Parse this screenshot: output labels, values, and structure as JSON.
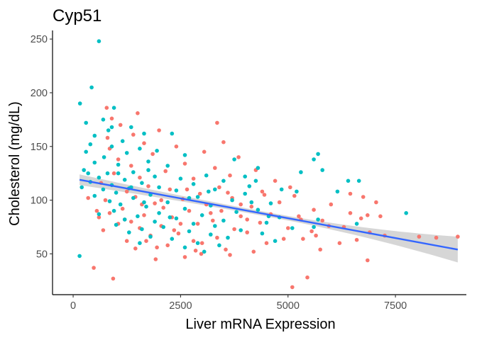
{
  "chart_data": {
    "type": "scatter",
    "title": "Cyp51",
    "xlabel": "Liver mRNA Expression",
    "ylabel": "Cholesterol (mg/dL)",
    "xlim": [
      -480,
      9150
    ],
    "ylim": [
      12,
      258
    ],
    "x_ticks": [
      0,
      2500,
      5000,
      7500
    ],
    "y_ticks": [
      50,
      100,
      150,
      200,
      250
    ],
    "grid": false,
    "legend": "none",
    "series": [
      {
        "color": "#F8766D",
        "points": [
          [
            930,
            27
          ],
          [
            480,
            37
          ],
          [
            1920,
            45
          ],
          [
            2600,
            47
          ],
          [
            3650,
            49
          ],
          [
            2980,
            50
          ],
          [
            4200,
            52
          ],
          [
            3550,
            54
          ],
          [
            1450,
            55
          ],
          [
            2200,
            58
          ],
          [
            3000,
            60
          ],
          [
            1250,
            62
          ],
          [
            2800,
            62
          ],
          [
            4500,
            60
          ],
          [
            3350,
            65
          ],
          [
            1800,
            67
          ],
          [
            2450,
            69
          ],
          [
            4050,
            70
          ],
          [
            700,
            72
          ],
          [
            3750,
            73
          ],
          [
            1550,
            74
          ],
          [
            5000,
            74
          ],
          [
            2050,
            76
          ],
          [
            1050,
            78
          ],
          [
            2900,
            78
          ],
          [
            4350,
            79
          ],
          [
            1350,
            80
          ],
          [
            3250,
            81
          ],
          [
            5300,
            82
          ],
          [
            600,
            84
          ],
          [
            2300,
            84
          ],
          [
            3900,
            85
          ],
          [
            1650,
            86
          ],
          [
            4600,
            87
          ],
          [
            850,
            88
          ],
          [
            2700,
            90
          ],
          [
            3450,
            90
          ],
          [
            5600,
            91
          ],
          [
            1150,
            92
          ],
          [
            2100,
            93
          ],
          [
            4150,
            94
          ],
          [
            3100,
            96
          ],
          [
            1900,
            97
          ],
          [
            4800,
            98
          ],
          [
            750,
            100
          ],
          [
            2550,
            101
          ],
          [
            3700,
            102
          ],
          [
            1450,
            103
          ],
          [
            5150,
            104
          ],
          [
            2950,
            106
          ],
          [
            1250,
            108
          ],
          [
            4400,
            108
          ],
          [
            2250,
            110
          ],
          [
            3400,
            112
          ],
          [
            1750,
            113
          ],
          [
            650,
            116
          ],
          [
            4700,
            118
          ],
          [
            2800,
            120
          ],
          [
            1550,
            121
          ],
          [
            3650,
            123
          ],
          [
            950,
            125
          ],
          [
            2150,
            127
          ],
          [
            4250,
            128
          ],
          [
            3300,
            130
          ],
          [
            1350,
            132
          ],
          [
            2600,
            134
          ],
          [
            1050,
            138
          ],
          [
            3850,
            140
          ],
          [
            1850,
            143
          ],
          [
            3050,
            145
          ],
          [
            850,
            148
          ],
          [
            2400,
            150
          ],
          [
            1650,
            153
          ],
          [
            3500,
            154
          ],
          [
            800,
            158
          ],
          [
            1400,
            161
          ],
          [
            2000,
            165
          ],
          [
            1100,
            170
          ],
          [
            3350,
            172
          ],
          [
            900,
            176
          ],
          [
            1500,
            181
          ],
          [
            780,
            186
          ],
          [
            6200,
            60
          ],
          [
            6600,
            63
          ],
          [
            5750,
            54
          ],
          [
            5450,
            28
          ],
          [
            5100,
            19
          ],
          [
            6900,
            70
          ],
          [
            7250,
            67
          ],
          [
            8050,
            66
          ],
          [
            8450,
            65
          ],
          [
            8950,
            66
          ],
          [
            7150,
            85
          ],
          [
            6850,
            86
          ],
          [
            6700,
            83
          ],
          [
            6450,
            88
          ],
          [
            5800,
            81
          ],
          [
            5250,
            85
          ],
          [
            5950,
            76
          ],
          [
            6300,
            75
          ],
          [
            7050,
            98
          ],
          [
            6000,
            96
          ],
          [
            6450,
            106
          ],
          [
            5050,
            112
          ],
          [
            5550,
            71
          ],
          [
            5350,
            64
          ],
          [
            5650,
            67
          ],
          [
            6850,
            44
          ],
          [
            6750,
            103
          ],
          [
            4900,
            64
          ],
          [
            4050,
            82
          ],
          [
            4450,
            105
          ],
          [
            3900,
            96
          ],
          [
            2350,
            72
          ],
          [
            1700,
            62
          ],
          [
            2850,
            53
          ],
          [
            550,
            90
          ],
          [
            350,
            102
          ],
          [
            2500,
            78
          ],
          [
            3200,
            88
          ],
          [
            1200,
            82
          ],
          [
            2050,
            100
          ],
          [
            1600,
            96
          ],
          [
            2650,
            110
          ],
          [
            1950,
            56
          ],
          [
            3600,
            107
          ]
        ]
      },
      {
        "color": "#00BFC4",
        "points": [
          [
            600,
            248
          ],
          [
            430,
            205
          ],
          [
            160,
            190
          ],
          [
            950,
            186
          ],
          [
            700,
            175
          ],
          [
            300,
            172
          ],
          [
            1350,
            168
          ],
          [
            820,
            165
          ],
          [
            1650,
            162
          ],
          [
            500,
            160
          ],
          [
            2300,
            162
          ],
          [
            1150,
            155
          ],
          [
            400,
            152
          ],
          [
            900,
            150
          ],
          [
            1550,
            148
          ],
          [
            1950,
            146
          ],
          [
            300,
            145
          ],
          [
            1250,
            144
          ],
          [
            2600,
            142
          ],
          [
            720,
            140
          ],
          [
            3750,
            138
          ],
          [
            1750,
            136
          ],
          [
            500,
            135
          ],
          [
            1050,
            133
          ],
          [
            2200,
            132
          ],
          [
            4300,
            130
          ],
          [
            250,
            128
          ],
          [
            1400,
            126
          ],
          [
            800,
            125
          ],
          [
            3100,
            123
          ],
          [
            1900,
            122
          ],
          [
            600,
            121
          ],
          [
            2500,
            120
          ],
          [
            1200,
            119
          ],
          [
            3500,
            118
          ],
          [
            400,
            117
          ],
          [
            1600,
            116
          ],
          [
            2800,
            115
          ],
          [
            900,
            114
          ],
          [
            4100,
            113
          ],
          [
            2000,
            112
          ],
          [
            200,
            112
          ],
          [
            1300,
            111
          ],
          [
            3300,
            110
          ],
          [
            700,
            110
          ],
          [
            2400,
            109
          ],
          [
            5200,
            108
          ],
          [
            1000,
            107
          ],
          [
            4000,
            106
          ],
          [
            1800,
            105
          ],
          [
            500,
            104
          ],
          [
            2900,
            103
          ],
          [
            1400,
            102
          ],
          [
            3700,
            100
          ],
          [
            850,
            99
          ],
          [
            2200,
            98
          ],
          [
            4600,
            97
          ],
          [
            1100,
            96
          ],
          [
            3200,
            95
          ],
          [
            1700,
            94
          ],
          [
            2600,
            92
          ],
          [
            4300,
            91
          ],
          [
            950,
            90
          ],
          [
            3800,
            89
          ],
          [
            2000,
            88
          ],
          [
            600,
            87
          ],
          [
            3000,
            86
          ],
          [
            1500,
            85
          ],
          [
            4800,
            84
          ],
          [
            2400,
            83
          ],
          [
            1200,
            82
          ],
          [
            3500,
            81
          ],
          [
            1900,
            80
          ],
          [
            4500,
            79
          ],
          [
            2800,
            78
          ],
          [
            1000,
            77
          ],
          [
            3300,
            76
          ],
          [
            2100,
            75
          ],
          [
            5100,
            74
          ],
          [
            1600,
            73
          ],
          [
            3900,
            72
          ],
          [
            2700,
            71
          ],
          [
            1300,
            70
          ],
          [
            4400,
            69
          ],
          [
            3200,
            68
          ],
          [
            1800,
            66
          ],
          [
            3600,
            65
          ],
          [
            2300,
            64
          ],
          [
            4700,
            62
          ],
          [
            2900,
            60
          ],
          [
            3400,
            58
          ],
          [
            2600,
            56
          ],
          [
            3050,
            52
          ],
          [
            150,
            48
          ],
          [
            1550,
            60
          ],
          [
            4250,
            118
          ],
          [
            4000,
            122
          ],
          [
            5300,
            126
          ],
          [
            5800,
            128
          ],
          [
            5600,
            138
          ],
          [
            5700,
            143
          ],
          [
            6150,
            108
          ],
          [
            6400,
            118
          ],
          [
            6650,
            118
          ],
          [
            7750,
            88
          ],
          [
            5700,
            82
          ],
          [
            6600,
            78
          ],
          [
            5600,
            75
          ],
          [
            4550,
            85
          ],
          [
            1750,
            128
          ],
          [
            900,
            168
          ],
          [
            1050,
            125
          ],
          [
            350,
            125
          ],
          [
            1350,
            112
          ],
          [
            2250,
            84
          ],
          [
            3150,
            108
          ],
          [
            2700,
            102
          ],
          [
            1650,
            98
          ],
          [
            4850,
            110
          ],
          [
            4150,
            98
          ]
        ]
      }
    ],
    "trend_line": {
      "method": "lm",
      "color": "#3366FF",
      "x_range": [
        150,
        8950
      ],
      "y_at_x_start": 119,
      "y_at_x_end": 54,
      "band_color": "#CCCCCC",
      "band_half_width_at_start": 5,
      "band_half_width_at_center": 2,
      "band_half_width_at_end": 12
    }
  }
}
